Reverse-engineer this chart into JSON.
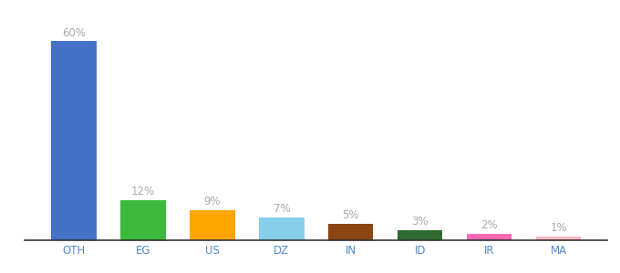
{
  "categories": [
    "OTH",
    "EG",
    "US",
    "DZ",
    "IN",
    "ID",
    "IR",
    "MA"
  ],
  "values": [
    60,
    12,
    9,
    7,
    5,
    3,
    2,
    1
  ],
  "bar_colors": [
    "#4472C4",
    "#3CB93C",
    "#FFA500",
    "#87CEEB",
    "#8B4513",
    "#2E6B2E",
    "#FF69B4",
    "#FFB6C1"
  ],
  "title": "",
  "bar_label_fontsize": 8.5,
  "xlabel_fontsize": 8.5,
  "ylim": [
    0,
    70
  ],
  "background_color": "#ffffff",
  "label_color": "#aaaaaa",
  "tick_color": "#5588cc"
}
